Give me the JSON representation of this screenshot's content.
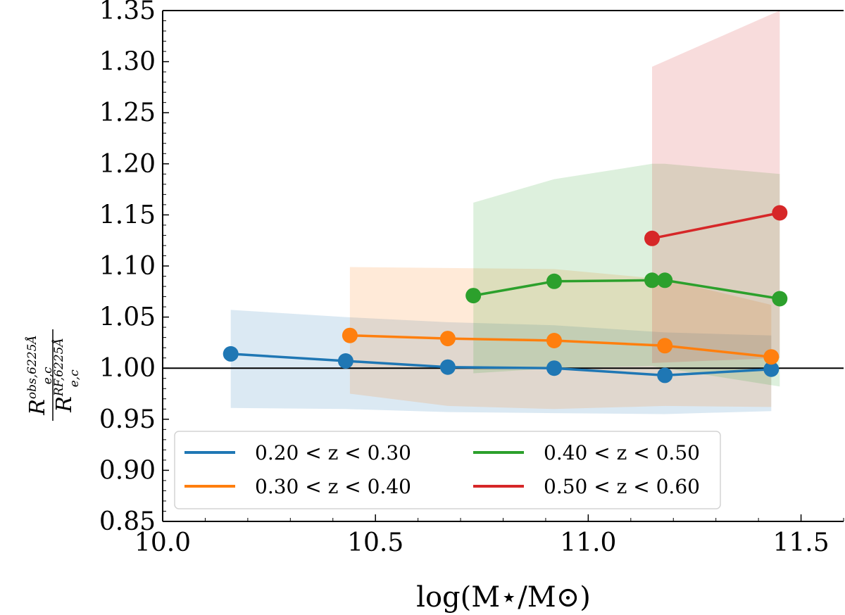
{
  "chart_data": {
    "type": "line",
    "xlabel": "log(M⋆/M⊙)",
    "ylabel": {
      "numerator": "R",
      "numerator_sup": "obs,6225Å",
      "numerator_sub": "e,c",
      "denominator": "R",
      "denominator_sup": "RF,6225Å",
      "denominator_sub": "e,c"
    },
    "xlim": [
      10.0,
      11.6
    ],
    "ylim": [
      0.85,
      1.35
    ],
    "xticks": [
      10.0,
      10.5,
      11.0,
      11.5
    ],
    "xtick_labels": [
      "10.0",
      "10.5",
      "11.0",
      "11.5"
    ],
    "yticks": [
      0.85,
      0.9,
      0.95,
      1.0,
      1.05,
      1.1,
      1.15,
      1.2,
      1.25,
      1.3,
      1.35
    ],
    "ytick_labels": [
      "0.85",
      "0.90",
      "0.95",
      "1.00",
      "1.05",
      "1.10",
      "1.15",
      "1.20",
      "1.25",
      "1.30",
      "1.35"
    ],
    "reference_line_y": 1.0,
    "legend_position": "lower-left",
    "legend_columns": 2,
    "series": [
      {
        "name": "0.20 < z < 0.30",
        "color": "#1f77b4",
        "x": [
          10.16,
          10.43,
          10.67,
          10.92,
          11.18,
          11.43
        ],
        "y": [
          1.014,
          1.007,
          1.001,
          1.0,
          0.993,
          0.999
        ],
        "band_upper": [
          1.057,
          1.05,
          1.045,
          1.042,
          1.035,
          1.032
        ],
        "band_lower": [
          0.961,
          0.96,
          0.957,
          0.956,
          0.955,
          0.958
        ]
      },
      {
        "name": "0.30 < z < 0.40",
        "color": "#ff7f0e",
        "x": [
          10.44,
          10.67,
          10.92,
          11.18,
          11.43
        ],
        "y": [
          1.032,
          1.029,
          1.027,
          1.022,
          1.011
        ],
        "band_upper": [
          1.099,
          1.098,
          1.097,
          1.087,
          1.062
        ],
        "band_lower": [
          0.975,
          0.963,
          0.96,
          0.963,
          0.962
        ]
      },
      {
        "name": "0.40 < z < 0.50",
        "color": "#2ca02c",
        "x": [
          10.73,
          10.92,
          11.15,
          11.18,
          11.45
        ],
        "y": [
          1.071,
          1.085,
          1.086,
          1.086,
          1.068
        ],
        "band_upper": [
          1.162,
          1.185,
          1.2,
          1.2,
          1.19
        ],
        "band_lower": [
          0.995,
          1.0,
          1.002,
          1.0,
          0.982
        ]
      },
      {
        "name": "0.50 < z < 0.60",
        "color": "#d62728",
        "x": [
          11.15,
          11.45
        ],
        "y": [
          1.127,
          1.152
        ],
        "band_upper": [
          1.295,
          1.35
        ],
        "band_lower": [
          1.005,
          1.01
        ]
      }
    ]
  }
}
